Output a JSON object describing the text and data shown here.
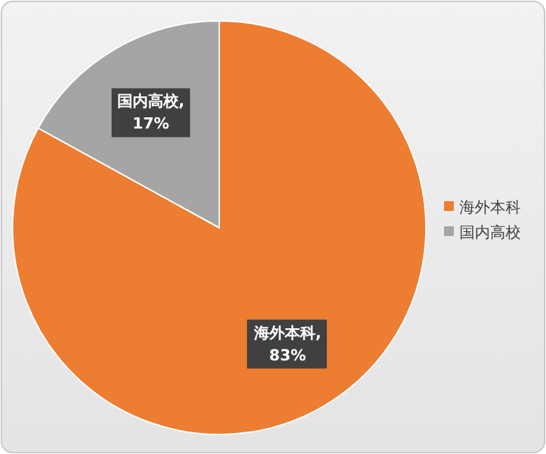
{
  "chart_data": {
    "type": "pie",
    "categories": [
      "海外本科",
      "国内高校"
    ],
    "values": [
      83,
      17
    ],
    "colors": [
      "#ed7d31",
      "#a5a5a5"
    ],
    "value_labels": [
      "海外本科, 83%",
      "国内高校, 17%"
    ],
    "legend": "right"
  }
}
